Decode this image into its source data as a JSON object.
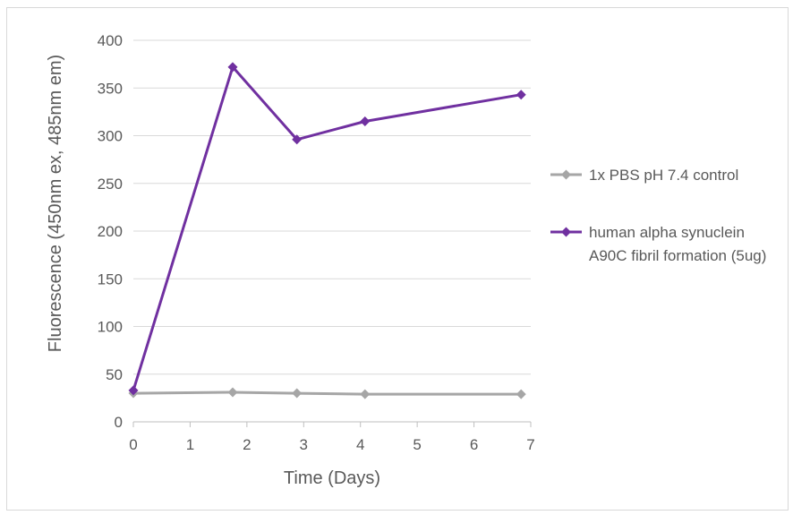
{
  "chart_data": {
    "type": "line",
    "title": "",
    "xlabel": "Time (Days)",
    "ylabel": "Fluorescence (450nm ex, 485nm em)",
    "xlim": [
      0,
      7
    ],
    "ylim": [
      0,
      400
    ],
    "xticks": [
      "0",
      "1",
      "2",
      "3",
      "4",
      "5",
      "6",
      "7"
    ],
    "yticks": [
      "0",
      "50",
      "100",
      "150",
      "200",
      "250",
      "300",
      "350",
      "400"
    ],
    "grid": true,
    "legend_position": "right",
    "series": [
      {
        "name": "1x PBS pH 7.4 control",
        "color": "#a6a6a6",
        "x": [
          0,
          1.75,
          2.88,
          4.08,
          6.83
        ],
        "y": [
          30,
          31,
          30,
          29,
          29
        ]
      },
      {
        "name": "human alpha synuclein A90C fibril formation (5ug)",
        "legend_lines": [
          "human alpha synuclein",
          "A90C fibril formation (5ug)"
        ],
        "color": "#7030a0",
        "x": [
          0,
          1.75,
          2.88,
          4.08,
          6.83
        ],
        "y": [
          33,
          372,
          296,
          315,
          343
        ]
      }
    ]
  }
}
